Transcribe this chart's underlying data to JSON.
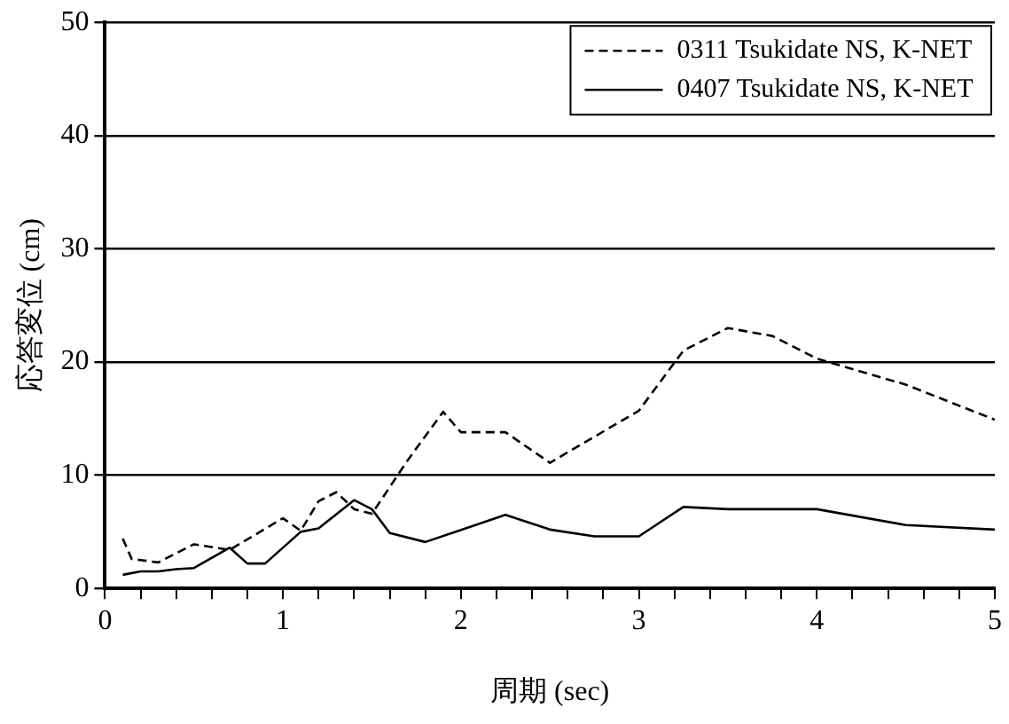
{
  "chart_data": {
    "type": "line",
    "xlabel": "周期 (sec)",
    "ylabel": "応答変位 (cm)",
    "xlim": [
      0,
      5
    ],
    "xticks": [
      0,
      {
        "value": 0.2,
        "label": null
      },
      {
        "value": 0.4,
        "label": null
      },
      {
        "value": 0.6,
        "label": null
      },
      {
        "value": 0.8,
        "label": null
      },
      1,
      {
        "value": 1.2,
        "label": null
      },
      {
        "value": 1.4,
        "label": null
      },
      {
        "value": 1.6,
        "label": null
      },
      {
        "value": 1.8,
        "label": null
      },
      2,
      {
        "value": 2.2,
        "label": null
      },
      {
        "value": 2.4,
        "label": null
      },
      {
        "value": 2.6,
        "label": null
      },
      {
        "value": 2.8,
        "label": null
      },
      3,
      {
        "value": 3.2,
        "label": null
      },
      {
        "value": 3.4,
        "label": null
      },
      {
        "value": 3.6,
        "label": null
      },
      {
        "value": 3.8,
        "label": null
      },
      4,
      {
        "value": 4.2,
        "label": null
      },
      {
        "value": 4.4,
        "label": null
      },
      {
        "value": 4.6,
        "label": null
      },
      {
        "value": 4.8,
        "label": null
      },
      5
    ],
    "ylim": [
      0,
      50
    ],
    "yticks": [
      0,
      10,
      20,
      30,
      40,
      50
    ],
    "grid": "y",
    "legend": "top right",
    "marker": "none",
    "series": [
      {
        "name": "0311 Tsukidate NS, K-NET",
        "color": "#000000",
        "line_style": "dashed",
        "x": [
          0.1,
          0.15,
          0.2,
          0.3,
          0.5,
          0.7,
          1.0,
          1.1,
          1.2,
          1.3,
          1.4,
          1.5,
          1.7,
          1.9,
          2.0,
          2.25,
          2.5,
          3.0,
          3.25,
          3.5,
          3.75,
          4.0,
          4.5,
          5.0
        ],
        "values": [
          4.4,
          2.6,
          2.5,
          2.3,
          3.9,
          3.4,
          6.2,
          5.1,
          7.7,
          8.5,
          7.0,
          6.6,
          11.3,
          15.6,
          13.8,
          13.8,
          11.1,
          15.7,
          21.0,
          23.0,
          22.3,
          20.3,
          18.0,
          14.9
        ]
      },
      {
        "name": "0407 Tsukidate NS, K-NET",
        "color": "#000000",
        "line_style": "solid",
        "x": [
          0.1,
          0.2,
          0.3,
          0.4,
          0.5,
          0.7,
          0.8,
          0.9,
          1.1,
          1.2,
          1.4,
          1.5,
          1.6,
          1.8,
          2.25,
          2.5,
          2.75,
          3.0,
          3.25,
          3.5,
          4.0,
          4.5,
          5.0
        ],
        "values": [
          1.2,
          1.5,
          1.5,
          1.7,
          1.8,
          3.6,
          2.2,
          2.2,
          5.0,
          5.3,
          7.8,
          7.0,
          4.9,
          4.1,
          6.5,
          5.2,
          4.6,
          4.6,
          7.2,
          7.0,
          7.0,
          5.6,
          5.2
        ]
      }
    ]
  }
}
